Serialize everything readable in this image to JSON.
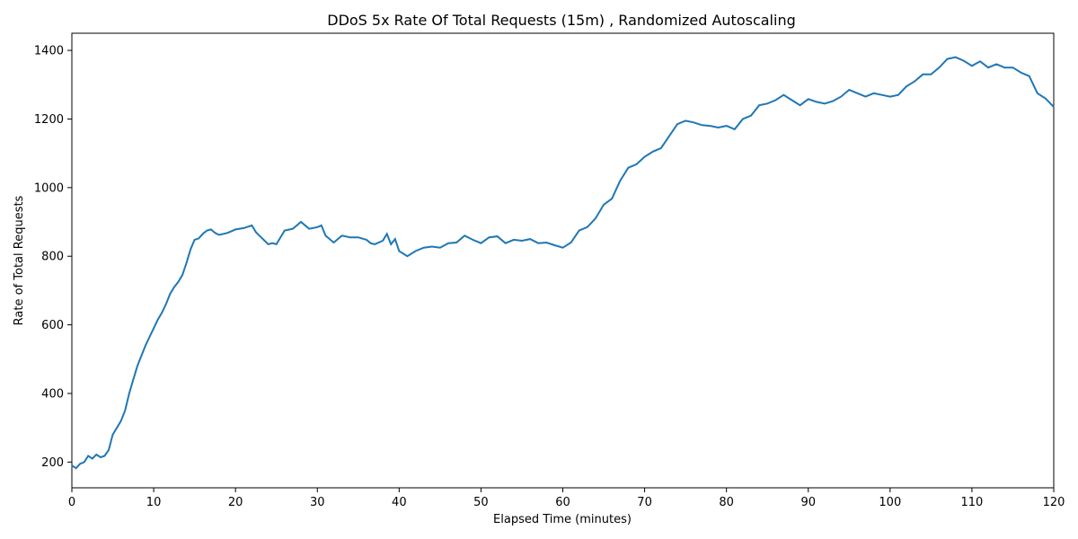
{
  "chart_data": {
    "type": "line",
    "title": "DDoS 5x Rate Of Total Requests (15m) , Randomized Autoscaling",
    "xlabel": "Elapsed Time (minutes)",
    "ylabel": "Rate of Total Requests",
    "xlim": [
      0,
      120
    ],
    "ylim": [
      125,
      1450
    ],
    "xticks": [
      0,
      10,
      20,
      30,
      40,
      50,
      60,
      70,
      80,
      90,
      100,
      110,
      120
    ],
    "yticks": [
      200,
      400,
      600,
      800,
      1000,
      1200,
      1400
    ],
    "grid": false,
    "line_color": "#1f77b4",
    "series": [
      {
        "x": [
          0,
          0.5,
          1,
          1.5,
          2,
          2.5,
          3,
          3.5,
          4,
          4.5,
          5,
          5.5,
          6,
          6.5,
          7,
          7.5,
          8,
          8.5,
          9,
          9.5,
          10,
          10.5,
          11,
          11.5,
          12,
          12.5,
          13,
          13.5,
          14,
          14.5,
          15,
          15.5,
          16,
          16.5,
          17,
          17.5,
          18,
          19,
          20,
          21,
          22,
          22.5,
          23,
          24,
          24.5,
          25,
          26,
          27,
          27.5,
          28,
          29,
          30,
          30.5,
          31,
          32,
          33,
          34,
          35,
          36,
          36.5,
          37,
          38,
          38.5,
          39,
          39.5,
          40,
          41,
          42,
          43,
          44,
          45,
          46,
          47,
          48,
          49,
          50,
          51,
          52,
          53,
          54,
          55,
          56,
          57,
          58,
          59,
          60,
          61,
          62,
          63,
          64,
          65,
          66,
          67,
          68,
          69,
          70,
          71,
          72,
          73,
          74,
          75,
          76,
          77,
          78,
          79,
          80,
          81,
          82,
          83,
          84,
          85,
          86,
          87,
          88,
          89,
          90,
          91,
          92,
          93,
          94,
          95,
          96,
          97,
          98,
          99,
          100,
          101,
          102,
          103,
          104,
          105,
          106,
          107,
          108,
          109,
          110,
          111,
          112,
          113,
          114,
          115,
          116,
          117,
          118,
          119,
          120
        ],
        "y": [
          190,
          182,
          195,
          200,
          218,
          210,
          222,
          214,
          218,
          235,
          280,
          300,
          320,
          350,
          400,
          440,
          480,
          510,
          540,
          565,
          590,
          615,
          635,
          660,
          690,
          710,
          725,
          745,
          780,
          820,
          848,
          852,
          865,
          875,
          878,
          868,
          862,
          868,
          878,
          882,
          890,
          870,
          858,
          835,
          838,
          835,
          875,
          880,
          890,
          900,
          880,
          885,
          890,
          860,
          840,
          860,
          855,
          855,
          848,
          838,
          835,
          845,
          865,
          835,
          850,
          815,
          800,
          815,
          825,
          828,
          825,
          838,
          840,
          860,
          848,
          838,
          855,
          858,
          838,
          848,
          845,
          850,
          838,
          840,
          832,
          825,
          840,
          875,
          885,
          910,
          950,
          968,
          1020,
          1058,
          1068,
          1090,
          1105,
          1115,
          1150,
          1185,
          1195,
          1190,
          1182,
          1180,
          1175,
          1180,
          1170,
          1200,
          1210,
          1240,
          1245,
          1255,
          1270,
          1255,
          1240,
          1258,
          1250,
          1245,
          1252,
          1265,
          1285,
          1275,
          1265,
          1275,
          1270,
          1265,
          1270,
          1295,
          1310,
          1330,
          1330,
          1350,
          1375,
          1380,
          1370,
          1355,
          1368,
          1350,
          1360,
          1350,
          1350,
          1335,
          1325,
          1275,
          1260,
          1235
        ]
      }
    ]
  }
}
